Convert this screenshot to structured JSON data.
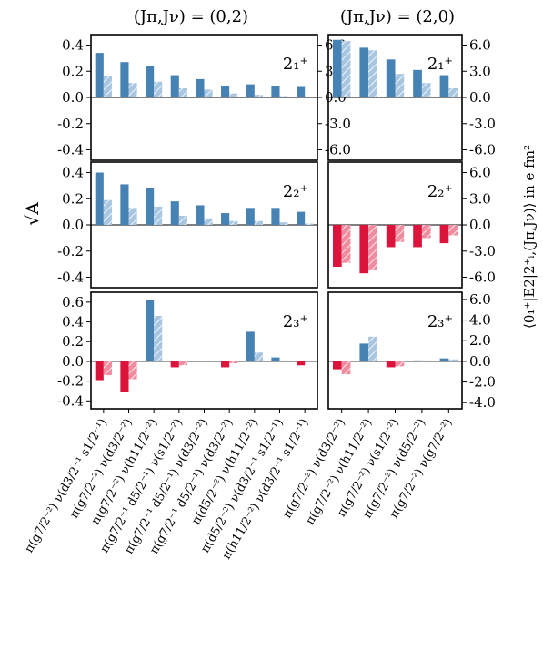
{
  "figure": {
    "left_ylabel": "√A",
    "right_ylabel": "⟨0₁⁺|E2|2⁺ᵢ,(Jπ,Jν)⟩ in e fm²",
    "col_titles": [
      "(Jπ,Jν) = (0,2)",
      "(Jπ,Jν) = (2,0)"
    ],
    "row_labels": [
      "2₁⁺",
      "2₂⁺",
      "2₃⁺"
    ]
  },
  "chart_data": [
    {
      "type": "bar",
      "row": 0,
      "col": 0,
      "label": "2₁⁺",
      "ylim": [
        -0.48,
        0.48
      ],
      "yticks": [
        0.4,
        0.2,
        0.0,
        -0.2,
        -0.4
      ],
      "yticklabels": [
        "0.4",
        "0.2",
        "0.0",
        "-0.2",
        "-0.4"
      ],
      "right_ylim": [
        -7.2,
        7.2
      ],
      "right_yticks": [
        6.0,
        3.0,
        0.0,
        -3.0,
        -6.0
      ],
      "right_yticklabels": [
        "6.0",
        "3.0",
        "0.0",
        "-3.0",
        "-6.0"
      ],
      "series": [
        {
          "name": "",
          "values": [
            0.34,
            0.27,
            0.24,
            0.17,
            0.14,
            0.09,
            0.1,
            0.09,
            0.08
          ]
        },
        {
          "name": "",
          "values": [
            0.16,
            0.11,
            0.12,
            0.07,
            0.06,
            0.03,
            0.02,
            0.01,
            0.005
          ]
        }
      ]
    },
    {
      "type": "bar",
      "row": 0,
      "col": 1,
      "label": "2₁⁺",
      "ylim": [
        -0.48,
        0.48
      ],
      "right_ylim": [
        -7.2,
        7.2
      ],
      "right_yticks": [
        6.0,
        3.0,
        0.0,
        -3.0,
        -6.0
      ],
      "right_yticklabels": [
        "6.0",
        "3.0",
        "0.0",
        "-3.0",
        "-6.0"
      ],
      "series": [
        {
          "name": "",
          "values": [
            0.44,
            0.38,
            0.29,
            0.21,
            0.17
          ]
        },
        {
          "name": "",
          "values": [
            0.43,
            0.36,
            0.18,
            0.11,
            0.07
          ]
        }
      ]
    },
    {
      "type": "bar",
      "row": 1,
      "col": 0,
      "label": "2₂⁺",
      "ylim": [
        -0.48,
        0.48
      ],
      "yticks": [
        0.4,
        0.2,
        0.0,
        -0.2,
        -0.4
      ],
      "yticklabels": [
        "0.4",
        "0.2",
        "0.0",
        "-0.2",
        "-0.4"
      ],
      "right_ylim": [
        -7.2,
        7.2
      ],
      "series": [
        {
          "name": "",
          "values": [
            0.4,
            0.31,
            0.28,
            0.18,
            0.15,
            0.09,
            0.13,
            0.13,
            0.1
          ]
        },
        {
          "name": "",
          "values": [
            0.19,
            0.13,
            0.14,
            0.07,
            0.05,
            0.03,
            0.03,
            0.02,
            0.01
          ]
        }
      ]
    },
    {
      "type": "bar",
      "row": 1,
      "col": 1,
      "label": "2₂⁺",
      "ylim": [
        -0.48,
        0.48
      ],
      "right_ylim": [
        -7.2,
        7.2
      ],
      "right_yticks": [
        6.0,
        3.0,
        0.0,
        -3.0,
        -6.0
      ],
      "right_yticklabels": [
        "6.0",
        "3.0",
        "0.0",
        "-3.0",
        "-6.0"
      ],
      "series": [
        {
          "name": "",
          "values": [
            -0.32,
            -0.37,
            -0.17,
            -0.17,
            -0.14
          ]
        },
        {
          "name": "",
          "values": [
            -0.29,
            -0.34,
            -0.13,
            -0.1,
            -0.08
          ]
        }
      ]
    },
    {
      "type": "bar",
      "row": 2,
      "col": 0,
      "label": "2₃⁺",
      "ylim": [
        -0.48,
        0.7
      ],
      "yticks": [
        0.6,
        0.4,
        0.2,
        0.0,
        -0.2,
        -0.4
      ],
      "yticklabels": [
        "0.6",
        "0.4",
        "0.2",
        "0.0",
        "-0.2",
        "-0.4"
      ],
      "right_ylim": [
        -4.6,
        6.7
      ],
      "series": [
        {
          "name": "",
          "values": [
            -0.19,
            -0.31,
            0.62,
            -0.06,
            0.0,
            -0.06,
            0.3,
            0.04,
            -0.04
          ]
        },
        {
          "name": "",
          "values": [
            -0.14,
            -0.18,
            0.46,
            -0.04,
            0.0,
            -0.02,
            0.09,
            0.01,
            0.0
          ]
        }
      ]
    },
    {
      "type": "bar",
      "row": 2,
      "col": 1,
      "label": "2₃⁺",
      "ylim": [
        -0.48,
        0.7
      ],
      "right_ylim": [
        -4.6,
        6.7
      ],
      "right_yticks": [
        6.0,
        4.0,
        2.0,
        0.0,
        -2.0,
        -4.0
      ],
      "right_yticklabels": [
        "6.0",
        "4.0",
        "2.0",
        "0.0",
        "-2.0",
        "-4.0"
      ],
      "series": [
        {
          "name": "",
          "values": [
            -0.08,
            0.18,
            -0.06,
            0.01,
            0.03
          ]
        },
        {
          "name": "",
          "values": [
            -0.13,
            0.25,
            -0.05,
            0.01,
            0.02
          ]
        }
      ]
    }
  ],
  "x_labels": {
    "left": [
      "π(g7/2⁻²) ν(d3/2⁻¹ s1/2⁻¹)",
      "π(g7/2⁻²) ν(d3/2⁻²)",
      "π(g7/2⁻²) ν(h11/2⁻²)",
      "π(g7/2⁻¹ d5/2⁻¹) ν(s1/2⁻²)",
      "π(g7/2⁻¹ d5/2⁻¹) ν(d3/2⁻²)",
      "π(g7/2⁻¹ d5/2⁻¹) ν(d3/2⁻²)",
      "π(d5/2⁻²) ν(h11/2⁻²)",
      "π(d5/2⁻²) ν(d3/2⁻¹ s1/2⁻¹)",
      "π(h11/2⁻²) ν(d3/2⁻¹ s1/2⁻¹)"
    ],
    "right": [
      "π(g7/2⁻²) ν(d3/2⁻²)",
      "π(g7/2⁻²) ν(h11/2⁻²)",
      "π(g7/2⁻²) ν(s1/2⁻²)",
      "π(g7/2⁻²) ν(d5/2⁻²)",
      "π(g7/2⁻²) ν(g7/2⁻²)"
    ]
  },
  "colors": {
    "pos_dark": "#4682b4",
    "pos_light": "#a9c6e0",
    "neg_dark": "#dc143c",
    "neg_light": "#f08ca0"
  }
}
